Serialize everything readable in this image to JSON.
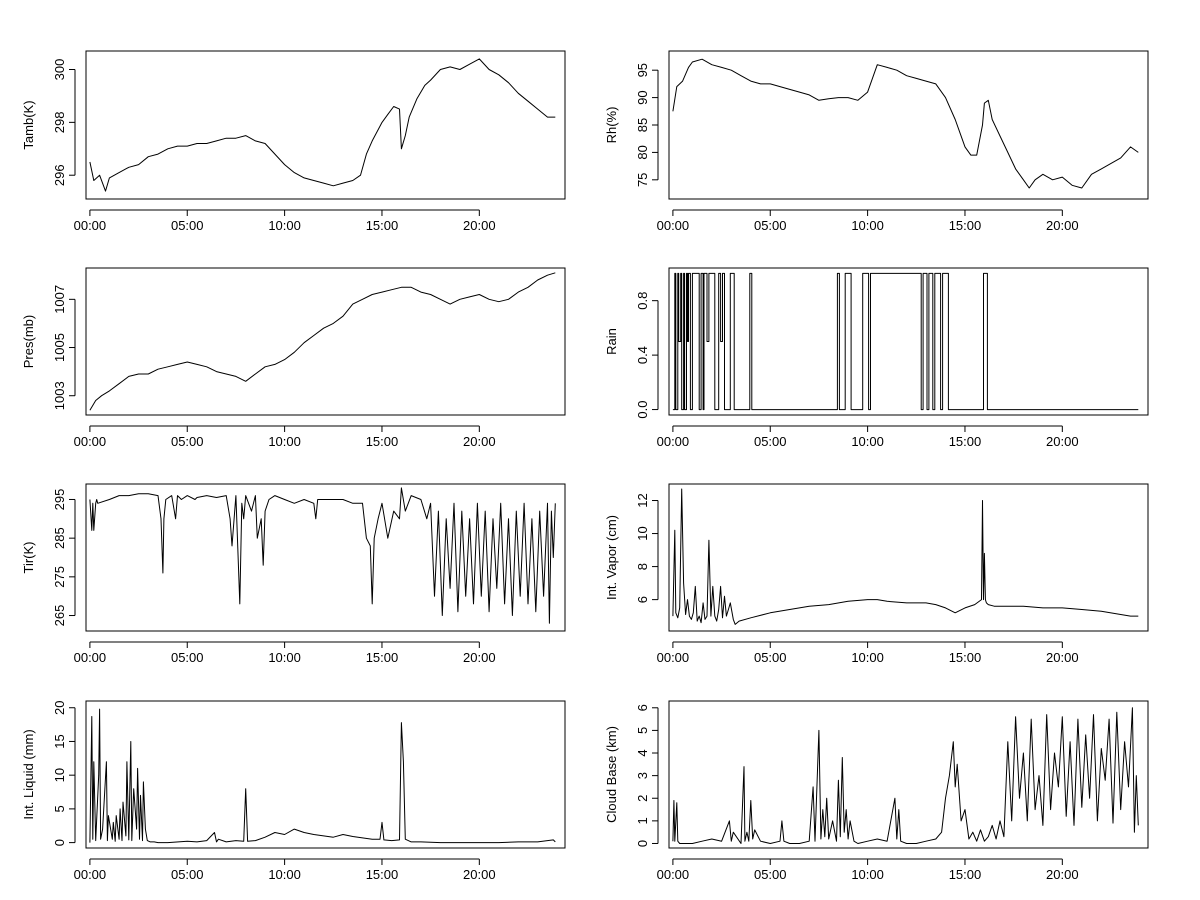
{
  "chart_data": [
    {
      "type": "line",
      "ylabel": "Tamb(K)",
      "x_ticks": [
        "00:00",
        "05:00",
        "10:00",
        "15:00",
        "20:00"
      ],
      "y_ticks": [
        296,
        298,
        300
      ],
      "xlim": [
        -0.2,
        24.4
      ],
      "ylim": [
        295.1,
        300.7
      ],
      "x": [
        0.0,
        0.2,
        0.5,
        0.8,
        1.0,
        1.5,
        2.0,
        2.5,
        3.0,
        3.5,
        4.0,
        4.5,
        5.0,
        5.5,
        6.0,
        6.5,
        7.0,
        7.5,
        8.0,
        8.5,
        9.0,
        9.5,
        10.0,
        10.5,
        11.0,
        11.5,
        12.0,
        12.5,
        13.0,
        13.5,
        13.9,
        14.2,
        14.5,
        15.0,
        15.3,
        15.6,
        15.9,
        16.0,
        16.2,
        16.4,
        16.8,
        17.2,
        17.5,
        18.0,
        18.5,
        19.0,
        19.5,
        20.0,
        20.5,
        21.0,
        21.5,
        22.0,
        22.5,
        23.0,
        23.5,
        23.9
      ],
      "y": [
        296.5,
        295.8,
        296.0,
        295.4,
        295.9,
        296.1,
        296.3,
        296.4,
        296.7,
        296.8,
        297.0,
        297.1,
        297.1,
        297.2,
        297.2,
        297.3,
        297.4,
        297.4,
        297.5,
        297.3,
        297.2,
        296.8,
        296.4,
        296.1,
        295.9,
        295.8,
        295.7,
        295.6,
        295.7,
        295.8,
        296.0,
        296.8,
        297.3,
        298.0,
        298.3,
        298.6,
        298.5,
        297.0,
        297.5,
        298.2,
        298.9,
        299.4,
        299.6,
        300.0,
        300.1,
        300.0,
        300.2,
        300.4,
        300.0,
        299.8,
        299.5,
        299.1,
        298.8,
        298.5,
        298.2,
        298.2
      ]
    },
    {
      "type": "line",
      "ylabel": "Rh(%)",
      "x_ticks": [
        "00:00",
        "05:00",
        "10:00",
        "15:00",
        "20:00"
      ],
      "y_ticks": [
        75,
        80,
        85,
        90,
        95
      ],
      "xlim": [
        -0.2,
        24.4
      ],
      "ylim": [
        71.5,
        98.5
      ],
      "x": [
        0.0,
        0.2,
        0.5,
        0.8,
        1.0,
        1.5,
        2.0,
        2.5,
        3.0,
        3.5,
        4.0,
        4.5,
        5.0,
        5.5,
        6.0,
        6.5,
        7.0,
        7.5,
        8.0,
        8.5,
        9.0,
        9.5,
        10.0,
        10.5,
        11.0,
        11.5,
        12.0,
        12.5,
        13.0,
        13.5,
        14.0,
        14.5,
        15.0,
        15.3,
        15.6,
        15.9,
        16.0,
        16.2,
        16.4,
        16.8,
        17.2,
        17.6,
        18.0,
        18.3,
        18.6,
        19.0,
        19.5,
        20.0,
        20.5,
        21.0,
        21.5,
        22.0,
        22.5,
        23.0,
        23.5,
        23.9
      ],
      "y": [
        87.5,
        92.0,
        93.0,
        95.5,
        96.5,
        97.0,
        96.0,
        95.5,
        95.0,
        94.0,
        93.0,
        92.5,
        92.5,
        92.0,
        91.5,
        91.0,
        90.5,
        89.5,
        89.8,
        90.0,
        90.0,
        89.5,
        91.0,
        96.0,
        95.5,
        95.0,
        94.0,
        93.5,
        93.0,
        92.5,
        90.0,
        86.0,
        81.0,
        79.5,
        79.5,
        85.0,
        89.0,
        89.5,
        86.0,
        83.0,
        80.0,
        77.0,
        75.0,
        73.5,
        75.0,
        76.0,
        75.0,
        75.5,
        74.0,
        73.5,
        76.0,
        77.0,
        78.0,
        79.0,
        81.0,
        80.0
      ]
    },
    {
      "type": "line",
      "ylabel": "Pres(mb)",
      "x_ticks": [
        "00:00",
        "05:00",
        "10:00",
        "15:00",
        "20:00"
      ],
      "y_ticks": [
        1003,
        1005,
        1007
      ],
      "xlim": [
        -0.2,
        24.4
      ],
      "ylim": [
        1002.2,
        1008.3
      ],
      "x": [
        0.0,
        0.3,
        0.6,
        1.0,
        1.5,
        2.0,
        2.5,
        3.0,
        3.5,
        4.0,
        4.5,
        5.0,
        5.5,
        6.0,
        6.5,
        7.0,
        7.5,
        8.0,
        8.5,
        9.0,
        9.5,
        10.0,
        10.5,
        11.0,
        11.5,
        12.0,
        12.5,
        13.0,
        13.5,
        14.0,
        14.5,
        15.0,
        15.5,
        16.0,
        16.5,
        17.0,
        17.5,
        18.0,
        18.5,
        19.0,
        19.5,
        20.0,
        20.5,
        21.0,
        21.5,
        22.0,
        22.5,
        23.0,
        23.5,
        23.9
      ],
      "y": [
        1002.4,
        1002.8,
        1003.0,
        1003.2,
        1003.5,
        1003.8,
        1003.9,
        1003.9,
        1004.1,
        1004.2,
        1004.3,
        1004.4,
        1004.3,
        1004.2,
        1004.0,
        1003.9,
        1003.8,
        1003.6,
        1003.9,
        1004.2,
        1004.3,
        1004.5,
        1004.8,
        1005.2,
        1005.5,
        1005.8,
        1006.0,
        1006.3,
        1006.8,
        1007.0,
        1007.2,
        1007.3,
        1007.4,
        1007.5,
        1007.5,
        1007.3,
        1007.2,
        1007.0,
        1006.8,
        1007.0,
        1007.1,
        1007.2,
        1007.0,
        1006.9,
        1007.0,
        1007.3,
        1007.5,
        1007.8,
        1008.0,
        1008.1
      ]
    },
    {
      "type": "line",
      "step": true,
      "ylabel": "Rain",
      "x_ticks": [
        "00:00",
        "05:00",
        "10:00",
        "15:00",
        "20:00"
      ],
      "y_ticks": [
        0.0,
        0.4,
        0.8
      ],
      "y_tick_labels": [
        "0.0",
        "0.4",
        "0.8"
      ],
      "xlim": [
        -0.2,
        24.4
      ],
      "ylim": [
        -0.04,
        1.04
      ],
      "x": [
        0.0,
        0.1,
        0.15,
        0.25,
        0.3,
        0.4,
        0.45,
        0.55,
        0.6,
        0.7,
        0.75,
        0.8,
        0.9,
        1.0,
        1.2,
        1.35,
        1.45,
        1.55,
        1.6,
        1.75,
        1.85,
        2.05,
        2.15,
        2.35,
        2.45,
        2.55,
        2.65,
        2.95,
        3.15,
        3.95,
        4.05,
        8.45,
        8.55,
        8.85,
        9.15,
        9.75,
        10.05,
        10.15,
        12.75,
        12.85,
        13.05,
        13.15,
        13.35,
        13.45,
        13.75,
        13.85,
        14.15,
        15.95,
        16.15,
        23.9
      ],
      "y": [
        0,
        1,
        0,
        1,
        0.5,
        1,
        0,
        1,
        0,
        1,
        0.5,
        1,
        0,
        1,
        1,
        0,
        1,
        0,
        1,
        0.5,
        1,
        1,
        0,
        1,
        0.5,
        1,
        0,
        1,
        0,
        1,
        0,
        1,
        0,
        1,
        0,
        1,
        0,
        1,
        0,
        1,
        0,
        1,
        0,
        1,
        0,
        1,
        0,
        1,
        0,
        0
      ]
    },
    {
      "type": "line",
      "ylabel": "Tir(K)",
      "x_ticks": [
        "00:00",
        "05:00",
        "10:00",
        "15:00",
        "20:00"
      ],
      "y_ticks": [
        265,
        275,
        285,
        295
      ],
      "xlim": [
        -0.2,
        24.4
      ],
      "ylim": [
        261.0,
        299.0
      ],
      "x": [
        0.0,
        0.1,
        0.15,
        0.2,
        0.3,
        0.35,
        0.4,
        1.0,
        1.5,
        2.0,
        2.5,
        3.0,
        3.5,
        3.65,
        3.75,
        3.8,
        3.9,
        4.2,
        4.4,
        4.5,
        4.7,
        5.0,
        5.4,
        5.5,
        6.0,
        6.5,
        7.0,
        7.2,
        7.3,
        7.5,
        7.7,
        7.8,
        7.9,
        8.0,
        8.3,
        8.5,
        8.6,
        8.8,
        8.9,
        9.0,
        9.2,
        9.5,
        10.0,
        10.5,
        11.0,
        11.5,
        11.6,
        11.7,
        12.0,
        13.0,
        13.5,
        14.0,
        14.2,
        14.4,
        14.5,
        14.6,
        14.8,
        15.0,
        15.3,
        15.6,
        15.9,
        16.0,
        16.2,
        16.5,
        17.0,
        17.3,
        17.5,
        17.7,
        17.9,
        18.1,
        18.3,
        18.5,
        18.7,
        18.9,
        19.1,
        19.3,
        19.5,
        19.7,
        19.9,
        20.1,
        20.3,
        20.5,
        20.7,
        20.9,
        21.1,
        21.3,
        21.5,
        21.7,
        21.9,
        22.1,
        22.3,
        22.5,
        22.7,
        22.9,
        23.1,
        23.3,
        23.5,
        23.6,
        23.7,
        23.8,
        23.9
      ],
      "y": [
        295,
        287,
        294,
        287,
        294,
        295,
        294,
        295,
        296,
        296,
        296.5,
        296.5,
        296,
        290,
        276,
        290,
        295,
        296,
        290,
        296,
        295,
        296,
        295,
        295.5,
        296,
        295.5,
        296,
        290,
        283,
        296,
        268,
        294,
        290,
        296,
        292,
        296,
        285,
        290,
        278,
        292,
        295,
        296,
        295,
        294,
        295,
        294,
        290,
        295,
        295,
        295,
        294,
        294,
        285,
        283,
        268,
        285,
        290,
        294,
        285,
        292,
        290,
        298,
        292,
        296,
        295,
        290,
        294,
        270,
        292,
        265,
        290,
        272,
        294,
        266,
        292,
        270,
        290,
        268,
        294,
        270,
        292,
        266,
        290,
        272,
        294,
        268,
        290,
        265,
        292,
        270,
        294,
        268,
        290,
        266,
        292,
        270,
        294,
        263,
        292,
        280,
        294
      ]
    },
    {
      "type": "line",
      "ylabel": "Int. Vapor (cm)",
      "x_ticks": [
        "00:00",
        "05:00",
        "10:00",
        "15:00",
        "20:00"
      ],
      "y_ticks": [
        6,
        8,
        10,
        12
      ],
      "xlim": [
        -0.2,
        24.4
      ],
      "ylim": [
        4.1,
        13.0
      ],
      "x": [
        0.0,
        0.1,
        0.15,
        0.25,
        0.35,
        0.45,
        0.55,
        0.65,
        0.75,
        0.85,
        0.95,
        1.05,
        1.15,
        1.25,
        1.35,
        1.45,
        1.55,
        1.65,
        1.75,
        1.85,
        1.95,
        2.05,
        2.15,
        2.25,
        2.35,
        2.45,
        2.55,
        2.65,
        2.75,
        2.85,
        2.95,
        3.1,
        3.2,
        3.4,
        4.0,
        5.0,
        6.0,
        7.0,
        8.0,
        9.0,
        10.0,
        10.5,
        11.0,
        12.0,
        13.0,
        13.5,
        14.0,
        14.5,
        15.0,
        15.5,
        15.85,
        15.9,
        15.95,
        16.0,
        16.05,
        16.1,
        16.2,
        16.5,
        17.0,
        18.0,
        19.0,
        20.0,
        21.0,
        22.0,
        23.0,
        23.5,
        23.9
      ],
      "y": [
        5.0,
        10.2,
        5.2,
        4.9,
        5.5,
        12.7,
        7.0,
        5.1,
        6.0,
        5.0,
        4.8,
        5.2,
        6.8,
        4.7,
        5.0,
        4.6,
        5.8,
        4.8,
        5.0,
        9.6,
        5.0,
        6.8,
        5.0,
        4.7,
        5.4,
        6.8,
        4.9,
        6.2,
        5.0,
        5.4,
        5.8,
        4.8,
        4.5,
        4.7,
        4.9,
        5.2,
        5.4,
        5.6,
        5.7,
        5.9,
        6.0,
        6.0,
        5.9,
        5.8,
        5.8,
        5.7,
        5.5,
        5.2,
        5.5,
        5.7,
        6.0,
        12.0,
        6.0,
        8.8,
        6.0,
        5.8,
        5.7,
        5.6,
        5.6,
        5.6,
        5.5,
        5.5,
        5.4,
        5.3,
        5.1,
        5.0,
        5.0
      ]
    },
    {
      "type": "line",
      "ylabel": "Int. Liquid (mm)",
      "x_ticks": [
        "00:00",
        "05:00",
        "10:00",
        "15:00",
        "20:00"
      ],
      "y_ticks": [
        0,
        5,
        10,
        15,
        20
      ],
      "xlim": [
        -0.2,
        24.4
      ],
      "ylim": [
        -0.8,
        21.0
      ],
      "x": [
        0.0,
        0.1,
        0.15,
        0.2,
        0.3,
        0.45,
        0.5,
        0.55,
        0.65,
        0.85,
        0.9,
        0.95,
        1.15,
        1.2,
        1.3,
        1.35,
        1.5,
        1.55,
        1.65,
        1.7,
        1.85,
        1.9,
        2.0,
        2.1,
        2.15,
        2.25,
        2.4,
        2.45,
        2.55,
        2.6,
        2.7,
        2.75,
        2.85,
        2.95,
        3.1,
        3.3,
        3.5,
        4.0,
        5.0,
        5.5,
        6.0,
        6.4,
        6.5,
        6.6,
        7.0,
        7.5,
        7.9,
        8.0,
        8.1,
        8.5,
        9.0,
        9.5,
        10.0,
        10.5,
        11.0,
        11.5,
        12.0,
        12.5,
        13.0,
        13.5,
        14.0,
        14.5,
        14.9,
        15.0,
        15.1,
        15.5,
        15.9,
        16.0,
        16.1,
        16.2,
        16.5,
        17.0,
        18.0,
        19.0,
        20.0,
        21.0,
        22.0,
        23.0,
        23.8,
        23.9
      ],
      "y": [
        0,
        18.7,
        0.5,
        12.0,
        0.3,
        10.0,
        19.8,
        0.5,
        2.0,
        12.0,
        0.3,
        4.0,
        0.5,
        3.0,
        0.2,
        4.0,
        0.5,
        5.0,
        0.3,
        6.0,
        1.0,
        12.0,
        0.4,
        15.0,
        0.3,
        8.0,
        2.0,
        11.0,
        0.5,
        7.0,
        0.3,
        9.0,
        2.0,
        0.3,
        0.1,
        0.1,
        0.0,
        0.0,
        0.2,
        0.1,
        0.3,
        1.5,
        0.1,
        0.5,
        0.1,
        0.3,
        0.2,
        8.0,
        0.2,
        0.3,
        0.8,
        1.5,
        1.2,
        2.0,
        1.5,
        1.2,
        1.0,
        0.8,
        1.2,
        0.9,
        0.7,
        0.5,
        0.5,
        3.0,
        0.4,
        0.3,
        0.4,
        17.8,
        12.0,
        0.5,
        0.1,
        0.1,
        0.0,
        0.0,
        0.0,
        0.0,
        0.1,
        0.1,
        0.4,
        0.1
      ]
    },
    {
      "type": "line",
      "ylabel": "Cloud Base (km)",
      "x_ticks": [
        "00:00",
        "05:00",
        "10:00",
        "15:00",
        "20:00"
      ],
      "y_ticks": [
        0,
        1,
        2,
        3,
        4,
        5,
        6
      ],
      "xlim": [
        -0.2,
        24.4
      ],
      "ylim": [
        -0.2,
        6.3
      ],
      "x": [
        0.0,
        0.05,
        0.1,
        0.2,
        0.25,
        0.35,
        1.0,
        1.5,
        2.0,
        2.5,
        2.9,
        3.0,
        3.1,
        3.5,
        3.65,
        3.7,
        3.8,
        3.9,
        4.0,
        4.1,
        4.2,
        4.5,
        5.0,
        5.5,
        5.6,
        5.7,
        6.0,
        6.5,
        7.0,
        7.2,
        7.3,
        7.5,
        7.6,
        7.7,
        7.8,
        7.9,
        8.0,
        8.2,
        8.4,
        8.5,
        8.6,
        8.7,
        8.8,
        8.9,
        9.0,
        9.1,
        9.3,
        9.5,
        10.0,
        10.5,
        11.0,
        11.4,
        11.5,
        11.6,
        11.7,
        12.0,
        12.5,
        13.0,
        13.5,
        13.8,
        14.0,
        14.2,
        14.4,
        14.5,
        14.6,
        14.8,
        15.0,
        15.2,
        15.4,
        15.6,
        15.8,
        16.0,
        16.2,
        16.4,
        16.6,
        16.8,
        17.0,
        17.2,
        17.4,
        17.6,
        17.8,
        18.0,
        18.2,
        18.4,
        18.6,
        18.8,
        19.0,
        19.2,
        19.4,
        19.6,
        19.8,
        20.0,
        20.2,
        20.4,
        20.6,
        20.8,
        21.0,
        21.2,
        21.4,
        21.6,
        21.8,
        22.0,
        22.2,
        22.4,
        22.6,
        22.8,
        23.0,
        23.2,
        23.4,
        23.6,
        23.7,
        23.8,
        23.9
      ],
      "y": [
        0.1,
        1.9,
        0.1,
        1.8,
        0.1,
        0.0,
        0.0,
        0.1,
        0.2,
        0.1,
        1.0,
        0.1,
        0.5,
        0.0,
        3.4,
        0.1,
        0.5,
        0.1,
        1.9,
        0.2,
        0.6,
        0.1,
        0.0,
        0.1,
        1.0,
        0.1,
        0.0,
        0.0,
        0.1,
        2.5,
        0.1,
        5.0,
        0.2,
        1.5,
        0.3,
        2.0,
        0.2,
        1.0,
        0.1,
        2.8,
        0.3,
        3.8,
        0.5,
        1.5,
        0.2,
        1.0,
        0.1,
        0.0,
        0.1,
        0.2,
        0.1,
        2.0,
        0.2,
        1.5,
        0.1,
        0.0,
        0.0,
        0.1,
        0.2,
        0.5,
        2.0,
        3.0,
        4.5,
        2.5,
        3.5,
        1.0,
        1.5,
        0.2,
        0.5,
        0.1,
        0.6,
        0.1,
        0.3,
        0.8,
        0.2,
        1.0,
        0.3,
        4.5,
        1.0,
        5.6,
        2.0,
        4.0,
        1.0,
        5.5,
        1.5,
        3.0,
        0.8,
        5.7,
        1.5,
        4.0,
        2.5,
        5.6,
        1.2,
        4.5,
        0.8,
        5.5,
        1.6,
        4.8,
        2.0,
        5.7,
        1.0,
        4.2,
        2.8,
        5.5,
        0.9,
        5.8,
        1.5,
        4.5,
        2.5,
        6.0,
        0.5,
        3.0,
        0.8
      ]
    }
  ]
}
